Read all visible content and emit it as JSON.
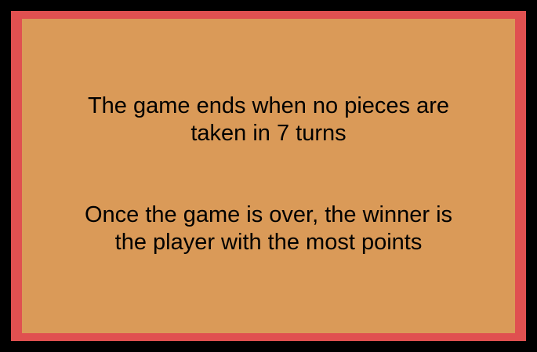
{
  "colors": {
    "background": "#000000",
    "border": "#e05050",
    "panel": "#da9a58",
    "text": "#000000"
  },
  "rules": {
    "paragraphs": [
      {
        "lines": [
          "The game ends when no pieces are",
          "taken in 7 turns"
        ]
      },
      {
        "lines": [
          "Once the game is over, the winner is",
          "the player with the most points"
        ]
      }
    ]
  }
}
